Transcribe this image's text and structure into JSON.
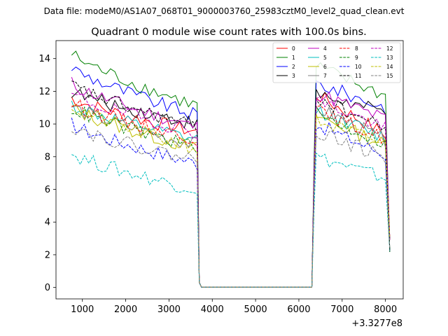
{
  "chart_data": {
    "type": "line",
    "suptitle": "Data file: modeM0/AS1A07_068T01_9000003760_25983cztM0_level2_quad_clean.evt",
    "title": "Quadrant 0 module wise count rates with 100.0s bins.",
    "x_offset_label": "+3.3277e8",
    "xlim": [
      390,
      8410
    ],
    "ylim": [
      -0.7,
      15.1
    ],
    "xticks": [
      1000,
      2000,
      3000,
      4000,
      5000,
      6000,
      7000,
      8000
    ],
    "yticks": [
      0,
      2,
      4,
      6,
      8,
      10,
      12,
      14
    ],
    "legend_location": "upper-right",
    "segments": {
      "active1": {
        "start": 750,
        "end": 3650,
        "step": 100
      },
      "drop1": [
        3700
      ],
      "gap": [
        3750,
        6300
      ],
      "rise2": [
        6350
      ],
      "active2": {
        "start": 6400,
        "end": 8050,
        "step": 100
      }
    },
    "series": [
      {
        "name": "0",
        "color": "#ff0000",
        "style": "solid",
        "level1": [
          11.6,
          9.5
        ],
        "level2": [
          12.0,
          9.0
        ],
        "trend2": [
          11.8,
          9.2
        ]
      },
      {
        "name": "1",
        "color": "#008000",
        "style": "solid",
        "level1": [
          14.3,
          11.1
        ],
        "level2": [
          13.9,
          10.9
        ],
        "trend2": [
          13.5,
          11.6
        ]
      },
      {
        "name": "2",
        "color": "#0000ff",
        "style": "solid",
        "level1": [
          13.5,
          10.5
        ],
        "level2": [
          12.7,
          10.8
        ],
        "trend2": [
          12.5,
          10.9
        ]
      },
      {
        "name": "3",
        "color": "#000000",
        "style": "solid",
        "level1": [
          12.0,
          10.0
        ],
        "level2": [
          12.3,
          9.6
        ],
        "trend2": [
          11.8,
          10.6
        ]
      },
      {
        "name": "4",
        "color": "#bf00bf",
        "style": "solid",
        "level1": [
          12.5,
          9.8
        ],
        "level2": [
          12.4,
          9.7
        ],
        "trend2": [
          11.9,
          10.2
        ]
      },
      {
        "name": "5",
        "color": "#00bfbf",
        "style": "solid",
        "level1": [
          11.2,
          9.0
        ],
        "level2": [
          11.0,
          8.8
        ],
        "trend2": [
          10.9,
          9.0
        ]
      },
      {
        "name": "6",
        "color": "#bfbf00",
        "style": "solid",
        "level1": [
          11.0,
          8.5
        ],
        "level2": [
          10.8,
          8.8
        ],
        "trend2": [
          10.5,
          8.6
        ]
      },
      {
        "name": "7",
        "color": "#808080",
        "style": "solid",
        "level1": [
          11.1,
          8.7
        ],
        "level2": [
          11.5,
          9.1
        ],
        "trend2": [
          11.0,
          8.9
        ]
      },
      {
        "name": "8",
        "color": "#ff0000",
        "style": "dashed",
        "level1": [
          11.3,
          9.1
        ],
        "level2": [
          11.2,
          9.0
        ],
        "trend2": [
          10.8,
          9.0
        ]
      },
      {
        "name": "9",
        "color": "#008000",
        "style": "dashed",
        "level1": [
          11.0,
          8.6
        ],
        "level2": [
          11.0,
          8.8
        ],
        "trend2": [
          10.6,
          8.7
        ]
      },
      {
        "name": "10",
        "color": "#0000ff",
        "style": "dashed",
        "level1": [
          10.0,
          7.6
        ],
        "level2": [
          10.2,
          7.8
        ],
        "trend2": [
          10.0,
          8.0
        ]
      },
      {
        "name": "11",
        "color": "#000000",
        "style": "dashed",
        "level1": [
          12.4,
          9.8
        ],
        "level2": [
          12.3,
          9.4
        ],
        "trend2": [
          11.6,
          9.6
        ]
      },
      {
        "name": "12",
        "color": "#bf00bf",
        "style": "dashed",
        "level1": [
          11.8,
          9.5
        ],
        "level2": [
          12.2,
          9.4
        ],
        "trend2": [
          11.5,
          9.6
        ]
      },
      {
        "name": "13",
        "color": "#00bfbf",
        "style": "dashed",
        "level1": [
          8.2,
          6.0
        ],
        "level2": [
          8.4,
          6.5
        ],
        "trend2": [
          8.0,
          6.6
        ]
      },
      {
        "name": "14",
        "color": "#bfbf00",
        "style": "dashed",
        "level1": [
          11.1,
          8.5
        ],
        "level2": [
          10.6,
          8.6
        ],
        "trend2": [
          10.2,
          8.7
        ]
      },
      {
        "name": "15",
        "color": "#808080",
        "style": "dashed",
        "level1": [
          9.9,
          7.8
        ],
        "level2": [
          10.5,
          7.5
        ],
        "trend2": [
          9.6,
          7.8
        ]
      }
    ]
  }
}
